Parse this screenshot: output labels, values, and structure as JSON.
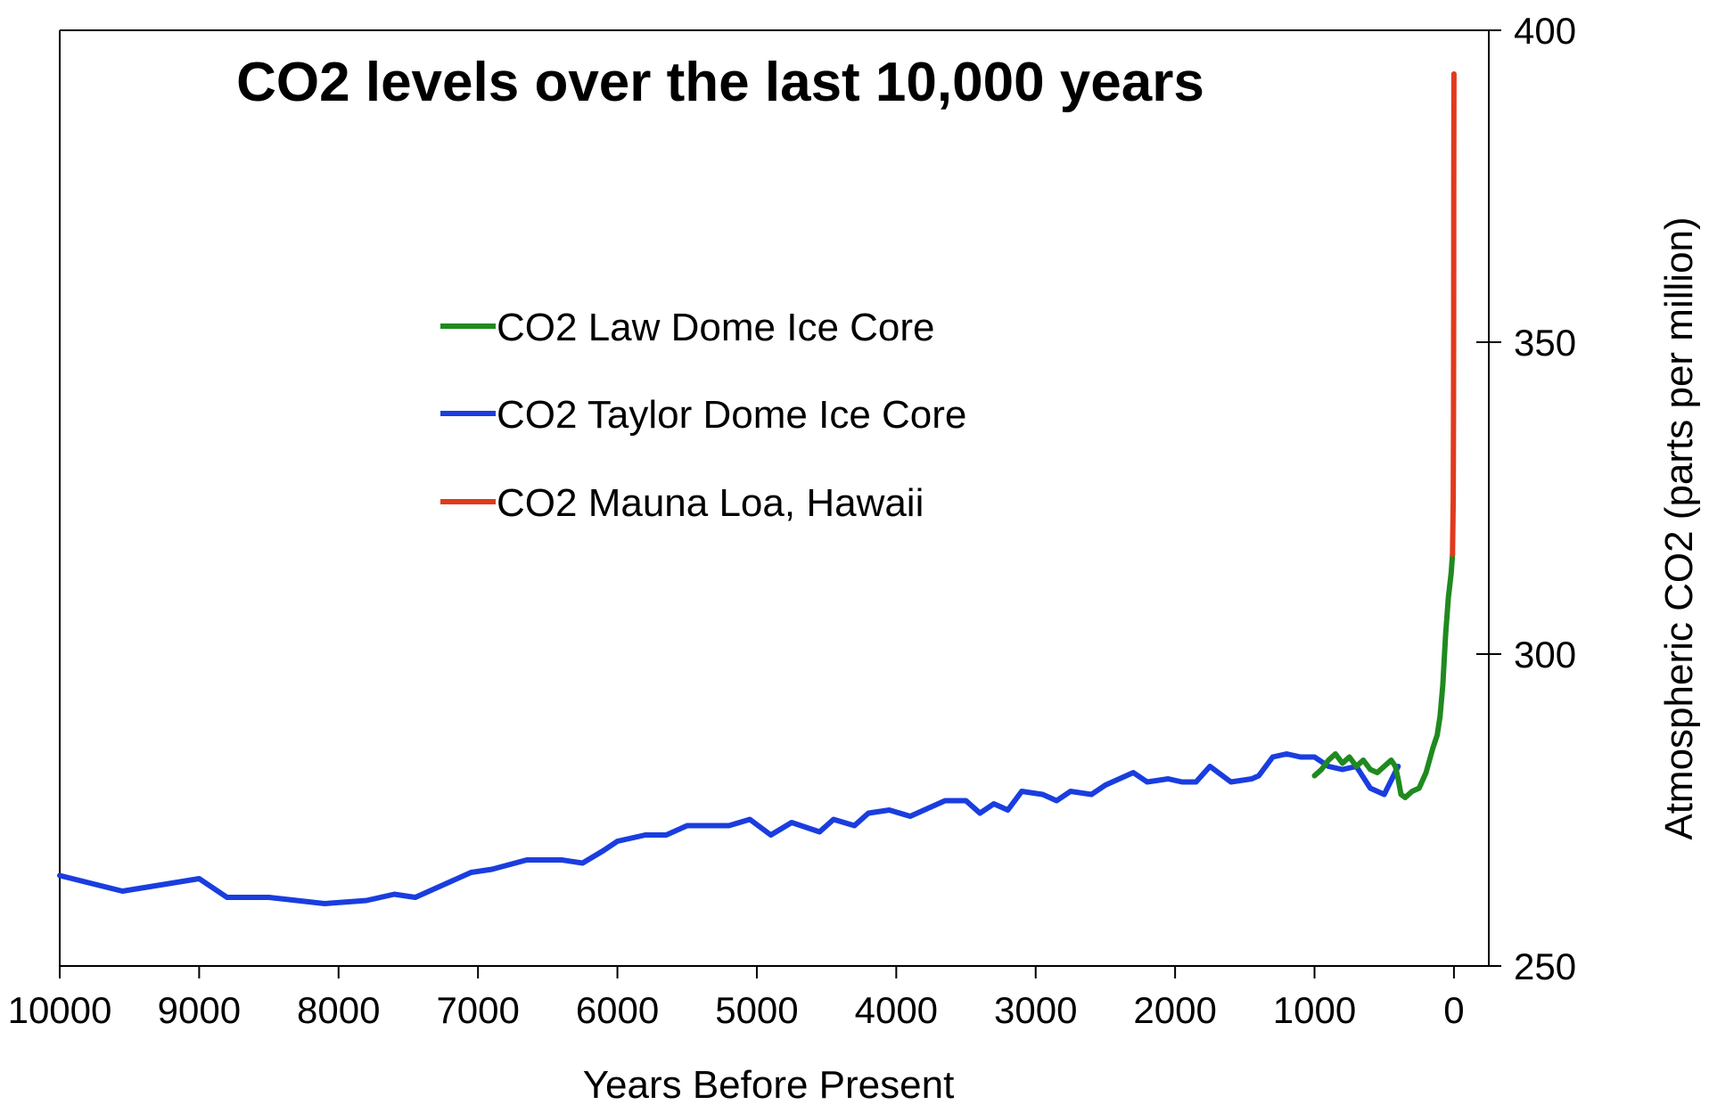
{
  "chart_data": {
    "type": "line",
    "title": "CO2 levels over the last 10,000 years",
    "xlabel": "Years Before Present",
    "ylabel": "Atmospheric CO2 (parts per million)",
    "xlim": [
      10000,
      -250
    ],
    "ylim": [
      250,
      400
    ],
    "x_ticks": [
      10000,
      9000,
      8000,
      7000,
      6000,
      5000,
      4000,
      3000,
      2000,
      1000,
      0
    ],
    "x_tick_labels": [
      "10000",
      "9000",
      "8000",
      "7000",
      "6000",
      "5000",
      "4000",
      "3000",
      "2000",
      "1000",
      "0"
    ],
    "y_ticks": [
      250,
      300,
      350,
      400
    ],
    "y_tick_labels": [
      "250",
      "300",
      "350",
      "400"
    ],
    "y_axis_side": "right",
    "grid": false,
    "legend_position": "upper-center",
    "series": [
      {
        "name": "CO2 Law Dome Ice Core",
        "color": "#1f8a1f",
        "points": [
          [
            1000,
            280.5
          ],
          [
            950,
            281.5
          ],
          [
            900,
            283.0
          ],
          [
            850,
            284.0
          ],
          [
            800,
            282.5
          ],
          [
            750,
            283.5
          ],
          [
            700,
            282.0
          ],
          [
            650,
            283.0
          ],
          [
            600,
            281.5
          ],
          [
            550,
            281.0
          ],
          [
            500,
            282.0
          ],
          [
            450,
            283.0
          ],
          [
            420,
            282.0
          ],
          [
            400,
            280.0
          ],
          [
            380,
            277.5
          ],
          [
            350,
            277.0
          ],
          [
            300,
            278.0
          ],
          [
            250,
            278.5
          ],
          [
            200,
            281.0
          ],
          [
            150,
            285.0
          ],
          [
            120,
            287.0
          ],
          [
            100,
            290.0
          ],
          [
            80,
            295.0
          ],
          [
            60,
            303.0
          ],
          [
            40,
            309.0
          ],
          [
            20,
            313.0
          ],
          [
            10,
            316.0
          ]
        ]
      },
      {
        "name": "CO2 Taylor Dome Ice Core",
        "color": "#1a3de0",
        "points": [
          [
            10000,
            264.5
          ],
          [
            9550,
            262.0
          ],
          [
            9000,
            264.0
          ],
          [
            8800,
            261.0
          ],
          [
            8500,
            261.0
          ],
          [
            8100,
            260.0
          ],
          [
            7800,
            260.5
          ],
          [
            7600,
            261.5
          ],
          [
            7450,
            261.0
          ],
          [
            7300,
            262.5
          ],
          [
            7050,
            265.0
          ],
          [
            6900,
            265.5
          ],
          [
            6650,
            267.0
          ],
          [
            6400,
            267.0
          ],
          [
            6250,
            266.5
          ],
          [
            6100,
            268.5
          ],
          [
            6000,
            270.0
          ],
          [
            5800,
            271.0
          ],
          [
            5650,
            271.0
          ],
          [
            5500,
            272.5
          ],
          [
            5200,
            272.5
          ],
          [
            5050,
            273.5
          ],
          [
            4900,
            271.0
          ],
          [
            4750,
            273.0
          ],
          [
            4550,
            271.5
          ],
          [
            4450,
            273.5
          ],
          [
            4300,
            272.5
          ],
          [
            4200,
            274.5
          ],
          [
            4050,
            275.0
          ],
          [
            3900,
            274.0
          ],
          [
            3750,
            275.5
          ],
          [
            3650,
            276.5
          ],
          [
            3500,
            276.5
          ],
          [
            3400,
            274.5
          ],
          [
            3300,
            276.0
          ],
          [
            3200,
            275.0
          ],
          [
            3100,
            278.0
          ],
          [
            2950,
            277.5
          ],
          [
            2850,
            276.5
          ],
          [
            2750,
            278.0
          ],
          [
            2600,
            277.5
          ],
          [
            2500,
            279.0
          ],
          [
            2300,
            281.0
          ],
          [
            2200,
            279.5
          ],
          [
            2050,
            280.0
          ],
          [
            1950,
            279.5
          ],
          [
            1850,
            279.5
          ],
          [
            1750,
            282.0
          ],
          [
            1600,
            279.5
          ],
          [
            1450,
            280.0
          ],
          [
            1400,
            280.5
          ],
          [
            1300,
            283.5
          ],
          [
            1200,
            284.0
          ],
          [
            1100,
            283.5
          ],
          [
            1000,
            283.5
          ],
          [
            900,
            282.0
          ],
          [
            800,
            281.5
          ],
          [
            700,
            282.0
          ],
          [
            600,
            278.5
          ],
          [
            500,
            277.5
          ],
          [
            400,
            282.0
          ]
        ]
      },
      {
        "name": "CO2 Mauna Loa, Hawaii",
        "color": "#e03a1e",
        "points": [
          [
            10,
            316.0
          ],
          [
            5,
            325.0
          ],
          [
            3,
            338.0
          ],
          [
            2,
            355.0
          ],
          [
            1,
            375.0
          ],
          [
            0,
            393.0
          ]
        ]
      }
    ]
  }
}
